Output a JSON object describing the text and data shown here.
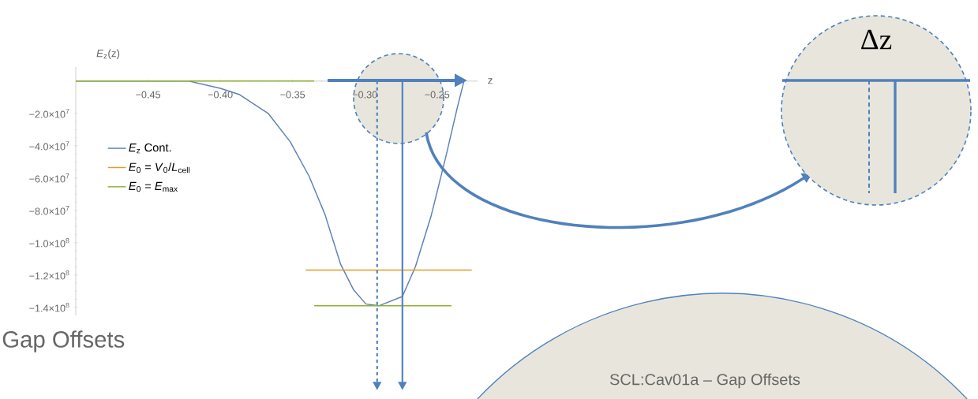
{
  "chart_data": {
    "type": "line",
    "xlabel": "z",
    "ylabel": "*E*$_{z}$(z)",
    "xlim": [
      -0.5,
      -0.222
    ],
    "ylim": [
      -145000000.0,
      8700000.0
    ],
    "xticks": [
      {
        "value": -0.45,
        "label": "−0.45"
      },
      {
        "value": -0.4,
        "label": "−0.40"
      },
      {
        "value": -0.35,
        "label": "−0.35"
      },
      {
        "value": -0.3,
        "label": "−0.30"
      },
      {
        "value": -0.25,
        "label": "−0.25"
      }
    ],
    "yticks": [
      {
        "value": -20000000.0,
        "label": "−2.0×10$^{7}$"
      },
      {
        "value": -40000000.0,
        "label": "−4.0×10$^{7}$"
      },
      {
        "value": -60000000.0,
        "label": "−6.0×10$^{7}$"
      },
      {
        "value": -80000000.0,
        "label": "−8.0×10$^{7}$"
      },
      {
        "value": -100000000.0,
        "label": "−1.0×10$^{8}$"
      },
      {
        "value": -120000000.0,
        "label": "−1.2×10$^{8}$"
      },
      {
        "value": -140000000.0,
        "label": "−1.4×10$^{8}$"
      }
    ],
    "series": [
      {
        "name": "*E*$_{z}$ Cont.",
        "color": "#5e81b5",
        "x": [
          -0.5,
          -0.45,
          -0.4216,
          -0.4,
          -0.3866,
          -0.3669,
          -0.3516,
          -0.3385,
          -0.3276,
          -0.3167,
          -0.3079,
          -0.2992,
          -0.29,
          -0.274,
          -0.265,
          -0.254,
          -0.244,
          -0.236,
          -0.2314
        ],
        "values": [
          0,
          0,
          0,
          -4500000.0,
          -8400000.0,
          -20000000.0,
          -37600000.0,
          -59000000.0,
          -82500000.0,
          -113500000.0,
          -129000000.0,
          -138000000.0,
          -139000000.0,
          -133300000.0,
          -114900000.0,
          -83000000.0,
          -47000000.0,
          -16400000.0,
          0
        ]
      },
      {
        "name": "*E*$_{0}$ = *V*$_{0}$/*L*$_{cell}$",
        "color": "#e19c24",
        "x": [
          -0.341,
          -0.226
        ],
        "values": [
          -117000000.0,
          -117000000.0
        ]
      },
      {
        "name": "*E*$_{0}$ = *E*$_{max}$",
        "color": "#8fb032",
        "x": [
          -0.5,
          -0.335,
          null,
          -0.335,
          -0.24
        ],
        "values": [
          0,
          0,
          null,
          -139000000.0,
          -139000000.0
        ]
      }
    ],
    "ref_lines": [
      {
        "axis": "x",
        "value": -0.2915,
        "line_style": "dashed",
        "color": "#4f81bd"
      },
      {
        "axis": "x",
        "value": -0.274,
        "line_style": "solid",
        "color": "#4f81bd"
      }
    ],
    "legend": "left",
    "grid": false,
    "annotations": [
      "Δz",
      "SCL:Cav01a – Gap Offsets",
      "Gap Offsets"
    ]
  }
}
